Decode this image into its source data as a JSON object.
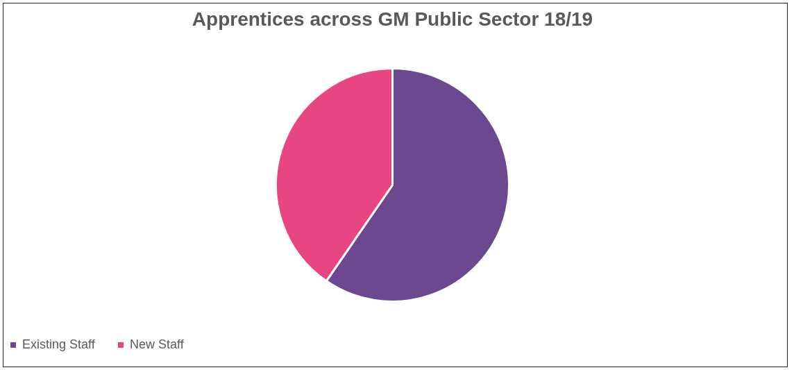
{
  "chart_data": {
    "type": "pie",
    "title": "Apprentices across GM Public Sector 18/19",
    "categories": [
      "Existing Staff",
      "New Staff"
    ],
    "values": [
      59.6,
      40.4
    ],
    "colors": [
      "#6b488f",
      "#e84683"
    ],
    "legend": "bottom"
  }
}
